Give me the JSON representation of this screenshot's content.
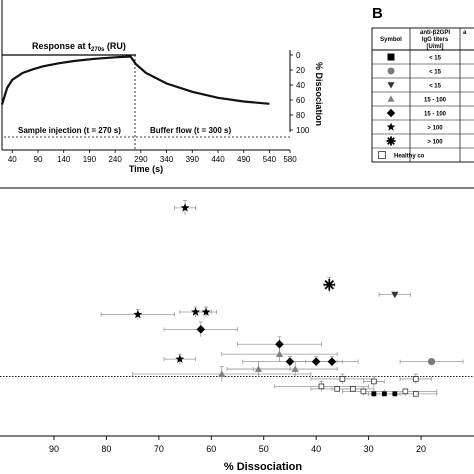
{
  "panel_b_label": "B",
  "chart_data": [
    {
      "type": "line",
      "panel": "A (inset)",
      "xlabel": "Time (s)",
      "ylabel_right": "% Dissociation",
      "annotation_top": "Response at t",
      "annotation_top_sub": "270s",
      "annotation_top_unit": " (RU)",
      "annotation_left": "Sample injection (t = 270 s)",
      "annotation_right": "Buffer flow (t = 300 s)",
      "x_ticks": [
        40,
        90,
        140,
        190,
        240,
        290,
        340,
        390,
        440,
        490,
        540,
        580
      ],
      "y_right_ticks": [
        0,
        20,
        40,
        60,
        80,
        100
      ],
      "xlim": [
        20,
        580
      ],
      "y_right_range": [
        0,
        100
      ],
      "series": [
        {
          "x": [
            20,
            30,
            40,
            60,
            80,
            100,
            130,
            160,
            200,
            240,
            270,
            280,
            300,
            340,
            390,
            440,
            490,
            540
          ],
          "y": [
            66,
            44,
            33,
            24,
            19,
            15,
            11,
            8,
            5,
            3,
            2,
            12,
            24,
            38,
            49,
            57,
            62,
            65
          ]
        }
      ]
    },
    {
      "type": "scatter",
      "panel": "main",
      "xlabel": "% Dissociation",
      "x_ticks": [
        90,
        80,
        70,
        60,
        50,
        40,
        30,
        20
      ],
      "xlim": [
        98,
        8
      ],
      "ylim": [
        0,
        100
      ],
      "reference_line_y": 24,
      "points": [
        {
          "x": 65,
          "y": 92,
          "marker": "star",
          "err_x": 2,
          "err_y": 3
        },
        {
          "x": 37.5,
          "y": 61,
          "marker": "asterisk",
          "err_x": 1,
          "err_y": 3
        },
        {
          "x": 25,
          "y": 57,
          "marker": "triangle-down",
          "err_x": 3,
          "err_y": 0
        },
        {
          "x": 74,
          "y": 49,
          "marker": "star",
          "err_x": 7,
          "err_y": 2
        },
        {
          "x": 63,
          "y": 50,
          "marker": "star",
          "err_x": 3,
          "err_y": 2
        },
        {
          "x": 61,
          "y": 50,
          "marker": "star",
          "err_x": 2,
          "err_y": 2
        },
        {
          "x": 62,
          "y": 43,
          "marker": "diamond",
          "err_x": 7,
          "err_y": 3
        },
        {
          "x": 47,
          "y": 37,
          "marker": "diamond",
          "err_x": 8,
          "err_y": 3
        },
        {
          "x": 66,
          "y": 31,
          "marker": "star",
          "err_x": 3,
          "err_y": 2
        },
        {
          "x": 47,
          "y": 33,
          "marker": "triangle",
          "err_x": 11,
          "err_y": 3
        },
        {
          "x": 45,
          "y": 30,
          "marker": "diamond",
          "err_x": 9,
          "err_y": 2
        },
        {
          "x": 40,
          "y": 30,
          "marker": "diamond",
          "err_x": 5,
          "err_y": 2
        },
        {
          "x": 37,
          "y": 30,
          "marker": "diamond",
          "err_x": 5,
          "err_y": 2
        },
        {
          "x": 18,
          "y": 30,
          "marker": "circle",
          "err_x": 6,
          "err_y": 0
        },
        {
          "x": 58,
          "y": 25,
          "marker": "triangle",
          "err_x": 17,
          "err_y": 3
        },
        {
          "x": 51,
          "y": 27,
          "marker": "triangle",
          "err_x": 6,
          "err_y": 3
        },
        {
          "x": 44,
          "y": 27,
          "marker": "triangle",
          "err_x": 8,
          "err_y": 3
        },
        {
          "x": 35,
          "y": 23,
          "marker": "square-open",
          "err_x": 6,
          "err_y": 2
        },
        {
          "x": 29,
          "y": 22,
          "marker": "square-open",
          "err_x": 2,
          "err_y": 2
        },
        {
          "x": 21,
          "y": 23,
          "marker": "square-open",
          "err_x": 3,
          "err_y": 2
        },
        {
          "x": 39,
          "y": 20,
          "marker": "square-open",
          "err_x": 9,
          "err_y": 2
        },
        {
          "x": 36,
          "y": 19,
          "marker": "square-open",
          "err_x": 5,
          "err_y": 1
        },
        {
          "x": 33,
          "y": 19,
          "marker": "square-open",
          "err_x": 4,
          "err_y": 1
        },
        {
          "x": 31,
          "y": 18,
          "marker": "square-open",
          "err_x": 4,
          "err_y": 1
        },
        {
          "x": 29,
          "y": 17,
          "marker": "square",
          "err_x": 2,
          "err_y": 1
        },
        {
          "x": 27,
          "y": 17,
          "marker": "square",
          "err_x": 3,
          "err_y": 1
        },
        {
          "x": 25,
          "y": 17,
          "marker": "square",
          "err_x": 2,
          "err_y": 1
        },
        {
          "x": 23,
          "y": 18,
          "marker": "square-open",
          "err_x": 6,
          "err_y": 1
        },
        {
          "x": 21,
          "y": 17,
          "marker": "square-open",
          "err_x": 4,
          "err_y": 1
        }
      ]
    },
    {
      "type": "table",
      "panel": "B",
      "columns": [
        "Symbol",
        "anti-β2GPI IgG titers [U/ml]",
        "a"
      ],
      "header_line2": [
        "",
        "IgG titers",
        ""
      ],
      "header_line3": [
        "",
        "[U/ml]",
        ""
      ],
      "rows": [
        {
          "symbol": "square",
          "titer": "< 15"
        },
        {
          "symbol": "circle",
          "titer": "< 15"
        },
        {
          "symbol": "triangle-down",
          "titer": "< 15"
        },
        {
          "symbol": "triangle",
          "titer": "15 - 100"
        },
        {
          "symbol": "diamond",
          "titer": "15 - 100"
        },
        {
          "symbol": "star",
          "titer": "> 100"
        },
        {
          "symbol": "asterisk",
          "titer": "> 100"
        },
        {
          "symbol": "square-open",
          "titer": "Healthy co"
        }
      ]
    }
  ],
  "colors": {
    "axis": "#000000",
    "curve": "#111111",
    "grey_marker": "#808080",
    "circle_marker": "#7a7a7a",
    "error_bar": "#9a9a9a",
    "background": "#ffffff"
  }
}
